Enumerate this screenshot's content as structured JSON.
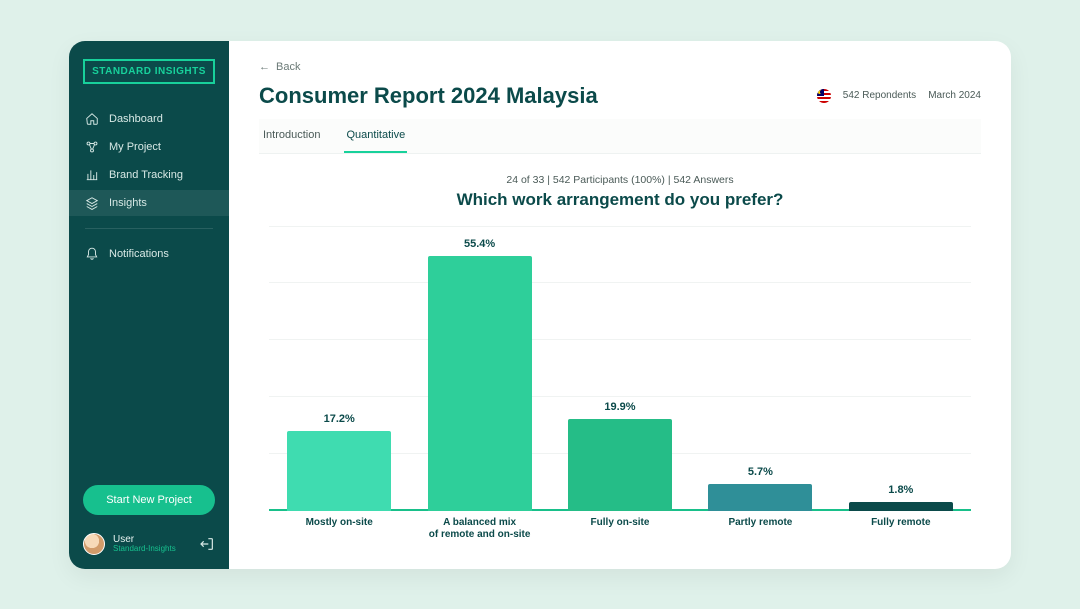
{
  "brand": {
    "name": "STANDARD INSIGHTS"
  },
  "sidebar": {
    "items": [
      {
        "label": "Dashboard",
        "icon": "home"
      },
      {
        "label": "My Project",
        "icon": "project"
      },
      {
        "label": "Brand Tracking",
        "icon": "chart"
      },
      {
        "label": "Insights",
        "icon": "layers"
      },
      {
        "label": "Notifications",
        "icon": "bell"
      }
    ],
    "active_index": 3,
    "cta_label": "Start New Project"
  },
  "user": {
    "name": "User",
    "org": "Standard-Insights"
  },
  "back_label": "Back",
  "report": {
    "title": "Consumer Report 2024 Malaysia",
    "respondents_label": "542 Repondents",
    "date_label": "March 2024"
  },
  "tabs": {
    "items": [
      "Introduction",
      "Quantitative"
    ],
    "active_index": 1
  },
  "chart": {
    "type": "bar",
    "subtext": "24 of 33 | 542 Participants (100%) | 542 Answers",
    "question": "Which work arrangement do you prefer?",
    "categories": [
      "Mostly on-site",
      "A balanced mix\nof remote and on-site",
      "Fully on-site",
      "Partly remote",
      "Fully remote"
    ],
    "values_pct": [
      17.2,
      55.4,
      19.9,
      5.7,
      1.8
    ],
    "value_labels": [
      "17.2%",
      "55.4%",
      "19.9%",
      "5.7%",
      "1.8%"
    ],
    "bar_colors": [
      "#3fdcb0",
      "#2ecf9a",
      "#25bd87",
      "#2f8f98",
      "#0b4a4a"
    ],
    "y_max_pct": 62,
    "gridlines": 6,
    "baseline_color": "#18c08a",
    "grid_color": "#f0f3f2",
    "background_color": "#ffffff",
    "title_color": "#0b4a4a",
    "label_fontsize": 11,
    "category_fontsize": 10,
    "bar_width_pct": 74
  },
  "palette": {
    "page_bg": "#dff1ea",
    "sidebar_bg": "#0b4a4a",
    "accent": "#18d19b",
    "text_muted": "#4a5a57"
  }
}
